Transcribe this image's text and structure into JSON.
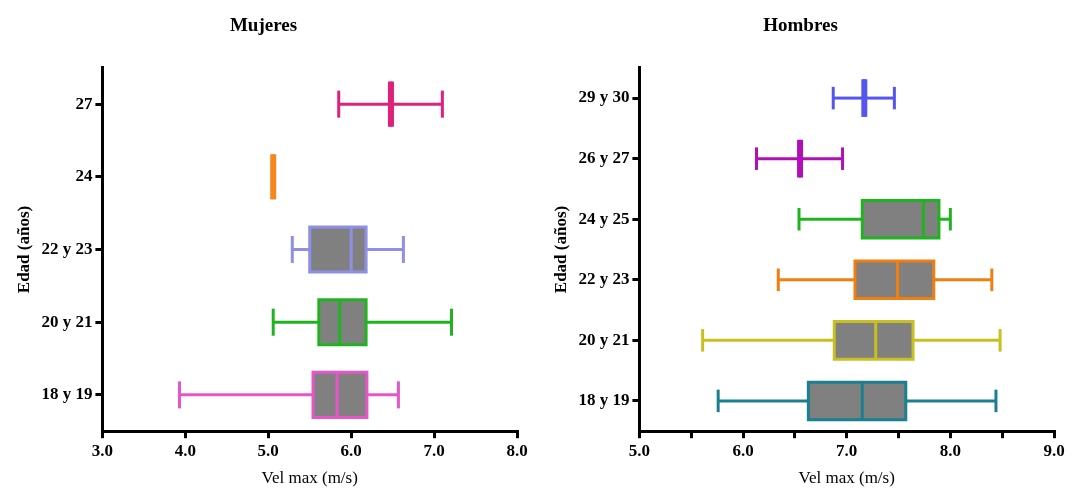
{
  "chart_data": [
    {
      "type": "box",
      "title": "Mujeres",
      "xlabel": "Vel max (m/s)",
      "ylabel": "Edad (años)",
      "orientation": "horizontal",
      "categories": [
        "27",
        "24",
        "22 y 23",
        "20 y 21",
        "18 y 19"
      ],
      "colors": [
        "#e0207a",
        "#f5871f",
        "#8f8fe8",
        "#1fb41f",
        "#e855c8"
      ],
      "boxes": [
        {
          "low": 5.85,
          "q1": 6.48,
          "median": 6.48,
          "q3": 6.48,
          "high": 7.1
        },
        {
          "low": 5.06,
          "q1": 5.06,
          "median": 5.06,
          "q3": 5.06,
          "high": 5.06
        },
        {
          "low": 5.29,
          "q1": 5.5,
          "median": 6.0,
          "q3": 6.18,
          "high": 6.63
        },
        {
          "low": 5.06,
          "q1": 5.61,
          "median": 5.86,
          "q3": 6.18,
          "high": 7.21
        },
        {
          "low": 3.93,
          "q1": 5.54,
          "median": 5.83,
          "q3": 6.19,
          "high": 6.57
        }
      ],
      "xlim": [
        3,
        8
      ],
      "xticks": [
        {
          "value": 3,
          "label": "3.0"
        },
        {
          "value": 4,
          "label": "4.0"
        },
        {
          "value": 5,
          "label": "5.0"
        },
        {
          "value": 6,
          "label": "6.0"
        },
        {
          "value": 7,
          "label": "7.0"
        },
        {
          "value": 8,
          "label": "8.0"
        }
      ]
    },
    {
      "type": "box",
      "title": "Hombres",
      "xlabel": "Vel max (m/s)",
      "ylabel": "Edad (años)",
      "orientation": "horizontal",
      "categories": [
        "29 y 30",
        "26 y 27",
        "24 y 25",
        "22 y 23",
        "20 y 21",
        "18 y 19"
      ],
      "colors": [
        "#5555f0",
        "#b010b8",
        "#1fb41f",
        "#f07f10",
        "#c8c020",
        "#1a8090"
      ],
      "boxes": [
        {
          "low": 6.87,
          "q1": 7.17,
          "median": 7.17,
          "q3": 7.17,
          "high": 7.46
        },
        {
          "low": 6.13,
          "q1": 6.55,
          "median": 6.55,
          "q3": 6.55,
          "high": 6.96
        },
        {
          "low": 6.54,
          "q1": 7.15,
          "median": 7.74,
          "q3": 7.89,
          "high": 8.0
        },
        {
          "low": 6.34,
          "q1": 7.08,
          "median": 7.49,
          "q3": 7.84,
          "high": 8.4
        },
        {
          "low": 5.61,
          "q1": 6.88,
          "median": 7.28,
          "q3": 7.64,
          "high": 8.48
        },
        {
          "low": 5.76,
          "q1": 6.63,
          "median": 7.15,
          "q3": 7.57,
          "high": 8.44
        }
      ],
      "xlim": [
        5,
        9
      ],
      "xticks": [
        {
          "value": 5,
          "label": "5.0"
        },
        {
          "value": 5.5,
          "label": null
        },
        {
          "value": 6,
          "label": "6.0"
        },
        {
          "value": 6.5,
          "label": null
        },
        {
          "value": 7,
          "label": "7.0"
        },
        {
          "value": 7.5,
          "label": null
        },
        {
          "value": 8,
          "label": "8.0"
        },
        {
          "value": 8.5,
          "label": null
        },
        {
          "value": 9,
          "label": "9.0"
        }
      ]
    }
  ]
}
